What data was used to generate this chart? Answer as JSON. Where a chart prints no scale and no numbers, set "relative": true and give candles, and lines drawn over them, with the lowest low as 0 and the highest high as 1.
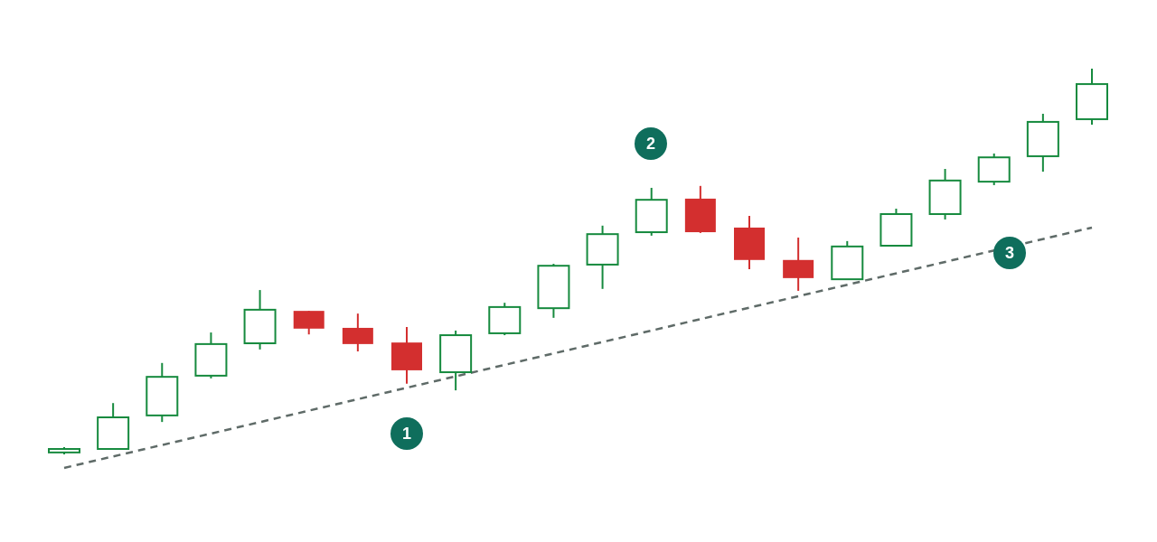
{
  "chart_data": {
    "type": "candlestick",
    "relative": true,
    "categories": [
      null,
      null,
      null,
      null,
      null,
      null,
      null,
      null,
      null,
      null,
      null,
      null,
      null,
      null,
      null,
      null,
      null,
      null,
      null,
      null,
      null,
      null
    ],
    "ohlc": [
      [
        0.005,
        0.019,
        0,
        0.014
      ],
      [
        0.014,
        0.133,
        0.012,
        0.096
      ],
      [
        0.101,
        0.237,
        0.084,
        0.201
      ],
      [
        0.204,
        0.316,
        0.197,
        0.286
      ],
      [
        0.288,
        0.426,
        0.272,
        0.375
      ],
      [
        0.372,
        0.372,
        0.311,
        0.326
      ],
      [
        0.328,
        0.365,
        0.267,
        0.286
      ],
      [
        0.29,
        0.33,
        0.183,
        0.218
      ],
      [
        0.213,
        0.321,
        0.166,
        0.309
      ],
      [
        0.314,
        0.393,
        0.309,
        0.382
      ],
      [
        0.379,
        0.494,
        0.354,
        0.489
      ],
      [
        0.492,
        0.593,
        0.429,
        0.571
      ],
      [
        0.576,
        0.691,
        0.567,
        0.66
      ],
      [
        0.663,
        0.696,
        0.574,
        0.576
      ],
      [
        0.588,
        0.618,
        0.48,
        0.504
      ],
      [
        0.504,
        0.562,
        0.424,
        0.457
      ],
      [
        0.454,
        0.553,
        0.452,
        0.539
      ],
      [
        0.541,
        0.637,
        0.541,
        0.623
      ],
      [
        0.623,
        0.74,
        0.609,
        0.71
      ],
      [
        0.707,
        0.78,
        0.698,
        0.77
      ],
      [
        0.773,
        0.883,
        0.733,
        0.862
      ],
      [
        0.869,
        1,
        0.855,
        0.96
      ]
    ],
    "colors": [
      "#168a3e",
      "#168a3e",
      "#168a3e",
      "#168a3e",
      "#168a3e",
      "#d32f2f",
      "#d32f2f",
      "#d32f2f",
      "#168a3e",
      "#168a3e",
      "#168a3e",
      "#168a3e",
      "#168a3e",
      "#d32f2f",
      "#d32f2f",
      "#d32f2f",
      "#168a3e",
      "#168a3e",
      "#168a3e",
      "#168a3e",
      "#168a3e",
      "#168a3e"
    ],
    "series": [
      {
        "type": "line",
        "values": [
          -0.035,
          null,
          null,
          null,
          null,
          null,
          null,
          null,
          null,
          null,
          null,
          null,
          null,
          null,
          null,
          null,
          null,
          null,
          null,
          null,
          null,
          0.588
        ],
        "color": "#5f6b68",
        "line_style": "dashed"
      }
    ],
    "annotations": [
      "1",
      "2",
      "3"
    ]
  }
}
